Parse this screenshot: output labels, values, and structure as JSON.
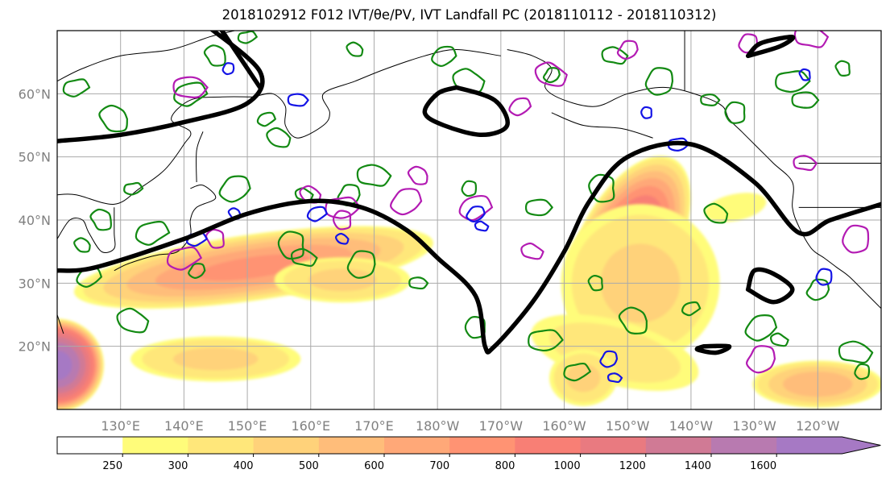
{
  "chart_data": {
    "type": "heatmap",
    "title": "2018102912 F012 IVT/θe/PV, IVT Landfall PC (2018110112 - 2018110312)",
    "lon_range": [
      120,
      250
    ],
    "lat_range": [
      10,
      70
    ],
    "xticks": [
      {
        "lon": 130,
        "label": "130°E"
      },
      {
        "lon": 140,
        "label": "140°E"
      },
      {
        "lon": 150,
        "label": "150°E"
      },
      {
        "lon": 160,
        "label": "160°E"
      },
      {
        "lon": 170,
        "label": "170°E"
      },
      {
        "lon": 180,
        "label": "180°W"
      },
      {
        "lon": 190,
        "label": "170°W"
      },
      {
        "lon": 200,
        "label": "160°W"
      },
      {
        "lon": 210,
        "label": "150°W"
      },
      {
        "lon": 220,
        "label": "140°W"
      },
      {
        "lon": 230,
        "label": "130°W"
      },
      {
        "lon": 240,
        "label": "120°W"
      }
    ],
    "yticks": [
      {
        "lat": 20,
        "label": "20°N"
      },
      {
        "lat": 30,
        "label": "30°N"
      },
      {
        "lat": 40,
        "label": "40°N"
      },
      {
        "lat": 50,
        "label": "50°N"
      },
      {
        "lat": 60,
        "label": "60°N"
      }
    ],
    "colorbar": {
      "levels": [
        250,
        300,
        400,
        500,
        600,
        700,
        800,
        1000,
        1200,
        1400,
        1600
      ],
      "colors": [
        "#ffffff",
        "#fffc7a",
        "#ffe77a",
        "#ffd27a",
        "#ffbd7a",
        "#ffa878",
        "#ff9373",
        "#f87f75",
        "#e97a80",
        "#d07a95",
        "#b87ab0",
        "#a679c4"
      ],
      "extend": "max"
    },
    "ivt_features": [
      {
        "lon": 151,
        "lat": 32.5,
        "rx": 30,
        "ry": 5.5,
        "rot": -8,
        "peak": 750
      },
      {
        "lon": 165,
        "lat": 30.5,
        "rx": 12,
        "ry": 4,
        "rot": 0,
        "peak": 450
      },
      {
        "lon": 210,
        "lat": 36,
        "rx": 8,
        "ry": 16,
        "rot": 28,
        "peak": 1050
      },
      {
        "lon": 212,
        "lat": 30,
        "rx": 14,
        "ry": 14,
        "rot": 0,
        "peak": 450
      },
      {
        "lon": 208,
        "lat": 19,
        "rx": 16,
        "ry": 6,
        "rot": 15,
        "peak": 380
      },
      {
        "lon": 203,
        "lat": 15,
        "rx": 6,
        "ry": 5,
        "rot": 0,
        "peak": 450
      },
      {
        "lon": 120,
        "lat": 17,
        "rx": 7.5,
        "ry": 7.5,
        "rot": 0,
        "peak": 1750
      },
      {
        "lon": 145,
        "lat": 18,
        "rx": 15,
        "ry": 4,
        "rot": 0,
        "peak": 450
      },
      {
        "lon": 240,
        "lat": 14,
        "rx": 11,
        "ry": 4,
        "rot": 0,
        "peak": 600
      },
      {
        "lon": 227,
        "lat": 42,
        "rx": 7,
        "ry": 3,
        "rot": -12,
        "peak": 300
      }
    ],
    "pc_contour": [
      [
        [
          120,
          52.5
        ],
        [
          130,
          53.5
        ],
        [
          140,
          55.5
        ],
        [
          150,
          58.5
        ],
        [
          152,
          63.5
        ],
        [
          144,
          70.5
        ]
      ],
      [
        [
          120,
          32
        ],
        [
          126,
          32.5
        ],
        [
          140,
          37
        ],
        [
          150,
          41
        ],
        [
          160,
          43
        ],
        [
          168,
          42
        ],
        [
          175,
          38.5
        ],
        [
          180,
          34
        ],
        [
          186,
          28
        ],
        [
          187.5,
          20
        ],
        [
          189,
          20
        ],
        [
          195,
          27
        ],
        [
          200,
          35
        ],
        [
          204,
          43
        ],
        [
          210,
          50
        ],
        [
          220,
          52
        ],
        [
          230,
          46
        ],
        [
          237,
          38
        ],
        [
          242,
          40
        ],
        [
          250,
          42.5
        ]
      ],
      [
        [
          183,
          61
        ],
        [
          189,
          59
        ],
        [
          191,
          55
        ],
        [
          187,
          53.5
        ],
        [
          181,
          55
        ],
        [
          178,
          57
        ],
        [
          180,
          60
        ],
        [
          183,
          61
        ]
      ],
      [
        [
          229,
          29
        ],
        [
          233,
          27
        ],
        [
          236,
          29
        ],
        [
          233,
          31.5
        ],
        [
          230,
          32
        ],
        [
          229,
          29
        ]
      ],
      [
        [
          222,
          20
        ],
        [
          226,
          20
        ],
        [
          224,
          19
        ],
        [
          221,
          19.5
        ],
        [
          222,
          20
        ]
      ],
      [
        [
          229,
          66
        ],
        [
          234,
          67.5
        ],
        [
          236,
          69
        ],
        [
          231,
          68
        ],
        [
          229,
          66
        ]
      ],
      [
        [
          146,
          70
        ],
        [
          150,
          64
        ],
        [
          152,
          61
        ]
      ]
    ],
    "pv_contours": [
      {
        "lon": 150,
        "lat": 69
      },
      {
        "lon": 145,
        "lat": 66
      },
      {
        "lon": 141,
        "lat": 60
      },
      {
        "lon": 167,
        "lat": 67
      },
      {
        "lon": 181,
        "lat": 66
      },
      {
        "lon": 185,
        "lat": 62
      },
      {
        "lon": 198,
        "lat": 63
      },
      {
        "lon": 208,
        "lat": 66
      },
      {
        "lon": 215,
        "lat": 62
      },
      {
        "lon": 223,
        "lat": 59
      },
      {
        "lon": 227,
        "lat": 57
      },
      {
        "lon": 236,
        "lat": 62
      },
      {
        "lon": 244,
        "lat": 64
      },
      {
        "lon": 123,
        "lat": 61
      },
      {
        "lon": 129,
        "lat": 56
      },
      {
        "lon": 153,
        "lat": 56
      },
      {
        "lon": 155,
        "lat": 53
      },
      {
        "lon": 148,
        "lat": 45
      },
      {
        "lon": 159,
        "lat": 44
      },
      {
        "lon": 166,
        "lat": 44
      },
      {
        "lon": 170,
        "lat": 47
      },
      {
        "lon": 185,
        "lat": 45
      },
      {
        "lon": 196,
        "lat": 42
      },
      {
        "lon": 206,
        "lat": 45
      },
      {
        "lon": 132,
        "lat": 45
      },
      {
        "lon": 127,
        "lat": 40
      },
      {
        "lon": 135,
        "lat": 38
      },
      {
        "lon": 124,
        "lat": 36
      },
      {
        "lon": 125,
        "lat": 31
      },
      {
        "lon": 132,
        "lat": 24
      },
      {
        "lon": 142,
        "lat": 32
      },
      {
        "lon": 159,
        "lat": 34
      },
      {
        "lon": 168,
        "lat": 33
      },
      {
        "lon": 177,
        "lat": 30
      },
      {
        "lon": 186,
        "lat": 23
      },
      {
        "lon": 197,
        "lat": 21
      },
      {
        "lon": 205,
        "lat": 30
      },
      {
        "lon": 202,
        "lat": 16
      },
      {
        "lon": 211,
        "lat": 24
      },
      {
        "lon": 220,
        "lat": 26
      },
      {
        "lon": 224,
        "lat": 41
      },
      {
        "lon": 231,
        "lat": 23
      },
      {
        "lon": 234,
        "lat": 21
      },
      {
        "lon": 240,
        "lat": 29
      },
      {
        "lon": 246,
        "lat": 19
      },
      {
        "lon": 247,
        "lat": 16
      },
      {
        "lon": 238,
        "lat": 59
      },
      {
        "lon": 157,
        "lat": 36
      }
    ],
    "theta_contours": [
      {
        "lon": 193,
        "lat": 58
      },
      {
        "lon": 198,
        "lat": 63
      },
      {
        "lon": 210,
        "lat": 67
      },
      {
        "lon": 239,
        "lat": 69
      },
      {
        "lon": 229,
        "lat": 68
      },
      {
        "lon": 141,
        "lat": 61
      },
      {
        "lon": 165,
        "lat": 40
      },
      {
        "lon": 165,
        "lat": 42
      },
      {
        "lon": 145,
        "lat": 37
      },
      {
        "lon": 140,
        "lat": 34
      },
      {
        "lon": 177,
        "lat": 47
      },
      {
        "lon": 186,
        "lat": 42
      },
      {
        "lon": 160,
        "lat": 44
      },
      {
        "lon": 175,
        "lat": 43
      },
      {
        "lon": 195,
        "lat": 35
      },
      {
        "lon": 231,
        "lat": 18
      },
      {
        "lon": 238,
        "lat": 49
      },
      {
        "lon": 246,
        "lat": 37
      }
    ],
    "pv_neg_contours": [
      {
        "lon": 147,
        "lat": 64
      },
      {
        "lon": 158,
        "lat": 59
      },
      {
        "lon": 213,
        "lat": 57
      },
      {
        "lon": 218,
        "lat": 52
      },
      {
        "lon": 238,
        "lat": 63
      },
      {
        "lon": 142,
        "lat": 37
      },
      {
        "lon": 148,
        "lat": 41
      },
      {
        "lon": 161,
        "lat": 41
      },
      {
        "lon": 165,
        "lat": 37
      },
      {
        "lon": 186,
        "lat": 41
      },
      {
        "lon": 187,
        "lat": 39
      },
      {
        "lon": 207,
        "lat": 18
      },
      {
        "lon": 208,
        "lat": 15
      },
      {
        "lon": 241,
        "lat": 31
      }
    ],
    "coastlines": [
      [
        [
          120,
          62
        ],
        [
          124,
          64
        ],
        [
          130,
          66
        ],
        [
          138,
          67
        ],
        [
          144,
          69
        ],
        [
          148,
          70
        ]
      ],
      [
        [
          151,
          59.5
        ],
        [
          154,
          60
        ],
        [
          156,
          58
        ],
        [
          156,
          55
        ],
        [
          158,
          53
        ],
        [
          162,
          55
        ],
        [
          163,
          57
        ],
        [
          162,
          60
        ],
        [
          167,
          62
        ],
        [
          172,
          64
        ],
        [
          178,
          66
        ],
        [
          183,
          67
        ],
        [
          190,
          66
        ]
      ],
      [
        [
          120,
          44
        ],
        [
          123,
          44
        ],
        [
          129,
          42.5
        ],
        [
          133,
          45
        ],
        [
          137,
          48
        ],
        [
          140,
          52
        ],
        [
          141,
          54
        ],
        [
          138,
          56
        ],
        [
          141,
          59
        ],
        [
          146,
          59.5
        ],
        [
          151,
          59.5
        ]
      ],
      [
        [
          120,
          37
        ],
        [
          122,
          40
        ],
        [
          124,
          40
        ],
        [
          125,
          38
        ],
        [
          127,
          35
        ],
        [
          129,
          35.5
        ],
        [
          129,
          38
        ],
        [
          129,
          42
        ]
      ],
      [
        [
          129,
          32
        ],
        [
          131,
          33
        ],
        [
          134,
          34
        ],
        [
          136,
          34.5
        ],
        [
          139,
          35
        ],
        [
          141,
          37.5
        ],
        [
          141,
          40
        ],
        [
          142,
          42
        ],
        [
          145,
          43.5
        ],
        [
          143,
          45.5
        ],
        [
          141,
          45
        ]
      ],
      [
        [
          142,
          46
        ],
        [
          142,
          51
        ],
        [
          143,
          54
        ]
      ],
      [
        [
          120,
          25
        ],
        [
          121,
          22
        ]
      ],
      [
        [
          191,
          67
        ],
        [
          195,
          66
        ],
        [
          198,
          64
        ],
        [
          197,
          61
        ],
        [
          200,
          59
        ],
        [
          205,
          58
        ],
        [
          210,
          60
        ],
        [
          216,
          61
        ],
        [
          222,
          59.5
        ],
        [
          225,
          58
        ],
        [
          226,
          56
        ],
        [
          228,
          54
        ],
        [
          230,
          52
        ],
        [
          233,
          49
        ],
        [
          236,
          46
        ],
        [
          236,
          42
        ],
        [
          237,
          39
        ],
        [
          239,
          35.5
        ],
        [
          241,
          34
        ],
        [
          243,
          32.5
        ],
        [
          245,
          31
        ],
        [
          248,
          28
        ],
        [
          250,
          26
        ]
      ],
      [
        [
          198,
          57
        ],
        [
          203,
          55
        ],
        [
          209,
          54.5
        ],
        [
          214,
          53
        ]
      ]
    ],
    "borders": [
      [
        [
          219,
          70
        ],
        [
          219,
          60.5
        ]
      ],
      [
        [
          237,
          49
        ],
        [
          250,
          49
        ]
      ],
      [
        [
          237,
          42
        ],
        [
          250,
          42
        ]
      ]
    ]
  }
}
